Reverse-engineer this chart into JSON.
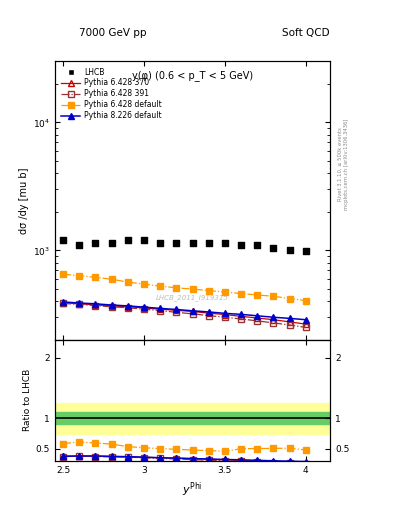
{
  "title_left": "7000 GeV pp",
  "title_right": "Soft QCD",
  "subtitle": "y(φ) (0.6 < p_T < 5 GeV)",
  "watermark": "LHCB_2011_I919315",
  "right_label1": "Rivet 3.1.10, ≥ 500k events",
  "right_label2": "mcplots.cern.ch [arXiv:1306.3436]",
  "ylabel_main": "dσ /dy [mu b]",
  "ylabel_ratio": "Ratio to LHCB",
  "xlabel": "y^{Phi}",
  "xlim": [
    2.45,
    4.15
  ],
  "ylim_main": [
    200,
    30000
  ],
  "ylim_ratio": [
    0.3,
    2.3
  ],
  "lhcb_x": [
    2.5,
    2.6,
    2.7,
    2.8,
    2.9,
    3.0,
    3.1,
    3.2,
    3.3,
    3.4,
    3.5,
    3.6,
    3.7,
    3.8,
    3.9,
    4.0
  ],
  "lhcb_y": [
    1200,
    1100,
    1150,
    1150,
    1200,
    1200,
    1150,
    1150,
    1150,
    1150,
    1150,
    1100,
    1100,
    1050,
    1000,
    980
  ],
  "p6_370_x": [
    2.5,
    2.6,
    2.7,
    2.8,
    2.9,
    3.0,
    3.1,
    3.2,
    3.3,
    3.4,
    3.5,
    3.6,
    3.7,
    3.8,
    3.9,
    4.0
  ],
  "p6_370_y": [
    390,
    382,
    375,
    368,
    362,
    355,
    347,
    340,
    333,
    323,
    315,
    305,
    296,
    287,
    276,
    265
  ],
  "p6_391_x": [
    2.5,
    2.6,
    2.7,
    2.8,
    2.9,
    3.0,
    3.1,
    3.2,
    3.3,
    3.4,
    3.5,
    3.6,
    3.7,
    3.8,
    3.9,
    4.0
  ],
  "p6_391_y": [
    385,
    378,
    370,
    362,
    356,
    347,
    338,
    328,
    319,
    309,
    300,
    291,
    281,
    271,
    261,
    250
  ],
  "p6_def_x": [
    2.5,
    2.6,
    2.7,
    2.8,
    2.9,
    3.0,
    3.1,
    3.2,
    3.3,
    3.4,
    3.5,
    3.6,
    3.7,
    3.8,
    3.9,
    4.0
  ],
  "p6_def_y": [
    650,
    635,
    615,
    595,
    565,
    545,
    525,
    510,
    498,
    485,
    472,
    460,
    448,
    438,
    420,
    405
  ],
  "p8_def_x": [
    2.5,
    2.6,
    2.7,
    2.8,
    2.9,
    3.0,
    3.1,
    3.2,
    3.3,
    3.4,
    3.5,
    3.6,
    3.7,
    3.8,
    3.9,
    4.0
  ],
  "p8_def_y": [
    395,
    388,
    382,
    374,
    368,
    360,
    352,
    345,
    337,
    330,
    322,
    316,
    308,
    300,
    294,
    287
  ],
  "ratio_p6_370": [
    0.375,
    0.375,
    0.375,
    0.37,
    0.365,
    0.36,
    0.35,
    0.34,
    0.335,
    0.325,
    0.315,
    0.305,
    0.296,
    0.287,
    0.276,
    0.265
  ],
  "ratio_p6_391": [
    0.37,
    0.375,
    0.37,
    0.365,
    0.36,
    0.35,
    0.34,
    0.33,
    0.32,
    0.309,
    0.3,
    0.291,
    0.281,
    0.271,
    0.261,
    0.25
  ],
  "ratio_p6_def": [
    0.585,
    0.61,
    0.595,
    0.575,
    0.535,
    0.515,
    0.502,
    0.49,
    0.478,
    0.468,
    0.457,
    0.5,
    0.502,
    0.505,
    0.508,
    0.48
  ],
  "ratio_p8_def": [
    0.375,
    0.38,
    0.38,
    0.374,
    0.368,
    0.36,
    0.35,
    0.345,
    0.337,
    0.33,
    0.322,
    0.316,
    0.308,
    0.3,
    0.294,
    0.287
  ],
  "green_band_lo": 0.9,
  "green_band_hi": 1.1,
  "yellow_band_lo": 0.75,
  "yellow_band_hi": 1.25,
  "color_lhcb": "#000000",
  "color_p6_370": "#cc0000",
  "color_p6_391": "#993333",
  "color_p6_def": "#ff9900",
  "color_p8_def": "#0000cc",
  "color_green": "#66cc66",
  "color_yellow": "#ffff99",
  "bg_color": "#ffffff"
}
